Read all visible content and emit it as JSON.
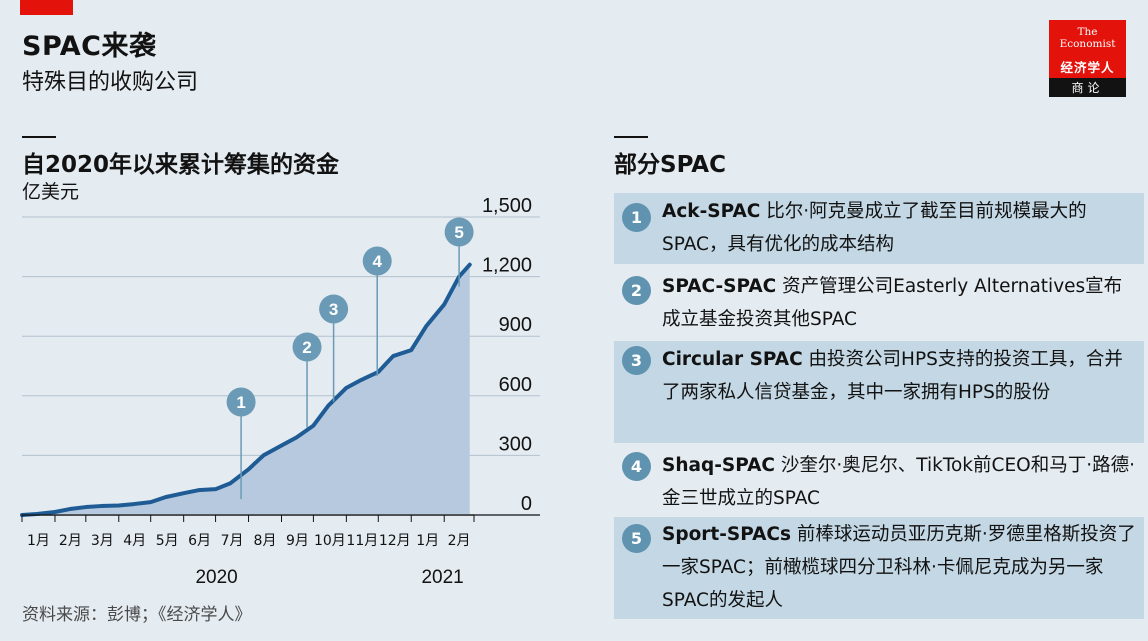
{
  "header": {
    "title": "SPAC来袭",
    "subtitle": "特殊目的收购公司"
  },
  "logo": {
    "line1": "The",
    "line2": "Economist",
    "cn": "经济学人",
    "sub": "商论",
    "bg_color": "#e3120b"
  },
  "chart_data": {
    "type": "area",
    "title": "自2020年以来累计筹集的资金",
    "ylabel": "亿美元",
    "ylim": [
      0,
      1500
    ],
    "y_ticks": [
      0,
      300,
      600,
      900,
      1200,
      1500
    ],
    "y_tick_labels": [
      "0",
      "300",
      "600",
      "900",
      "1,200",
      "1,500"
    ],
    "x_months": [
      "1月",
      "2月",
      "3月",
      "4月",
      "5月",
      "6月",
      "7月",
      "8月",
      "9月",
      "10月",
      "11月",
      "12月",
      "1月",
      "2月"
    ],
    "x_years": [
      "2020",
      "2021"
    ],
    "x_start": "2020-01-01",
    "x_end": "2021-03-01",
    "x": [
      "2020-01-01",
      "2020-01-15",
      "2020-02-01",
      "2020-02-15",
      "2020-03-01",
      "2020-03-15",
      "2020-04-01",
      "2020-04-15",
      "2020-05-01",
      "2020-05-15",
      "2020-06-01",
      "2020-06-15",
      "2020-07-01",
      "2020-07-15",
      "2020-08-01",
      "2020-08-15",
      "2020-09-01",
      "2020-09-15",
      "2020-10-01",
      "2020-10-15",
      "2020-11-01",
      "2020-11-15",
      "2020-12-01",
      "2020-12-15",
      "2021-01-01",
      "2021-01-15",
      "2021-02-01",
      "2021-02-15",
      "2021-02-25"
    ],
    "values": [
      0,
      5,
      15,
      30,
      40,
      45,
      48,
      55,
      65,
      90,
      110,
      125,
      130,
      160,
      230,
      300,
      350,
      390,
      450,
      550,
      640,
      680,
      720,
      800,
      830,
      950,
      1060,
      1200,
      1260
    ],
    "series_color": "#1f5b94",
    "fill_color": "#b7c9de",
    "markers": [
      {
        "label": "1",
        "date": "2020-07-25",
        "value": 80
      },
      {
        "label": "2",
        "date": "2020-09-25",
        "value": 440
      },
      {
        "label": "3",
        "date": "2020-10-20",
        "value": 570
      },
      {
        "label": "4",
        "date": "2020-11-30",
        "value": 700
      },
      {
        "label": "5",
        "date": "2021-02-15",
        "value": 1150
      }
    ],
    "marker_color": "#6a9ab5"
  },
  "list": {
    "title": "部分SPAC",
    "items": [
      {
        "num": "1",
        "name": "Ack-SPAC",
        "text": " 比尔·阿克曼成立了截至目前规模最大的SPAC，具有优化的成本结构"
      },
      {
        "num": "2",
        "name": "SPAC-SPAC",
        "text": " 资产管理公司Easterly Alternatives宣布成立基金投资其他SPAC"
      },
      {
        "num": "3",
        "name": "Circular SPAC",
        "text": " 由投资公司HPS支持的投资工具，合并了两家私人信贷基金，其中一家拥有HPS的股份"
      },
      {
        "num": "4",
        "name": "Shaq-SPAC",
        "text": " 沙奎尔·奥尼尔、TikTok前CEO和马丁·路德·金三世成立的SPAC"
      },
      {
        "num": "5",
        "name": "Sport-SPACs",
        "text": " 前棒球运动员亚历克斯·罗德里格斯投资了一家SPAC；前橄榄球四分卫科林·卡佩尼克成为另一家SPAC的发起人"
      }
    ]
  },
  "source": "资料来源：彭博；《经济学人》"
}
